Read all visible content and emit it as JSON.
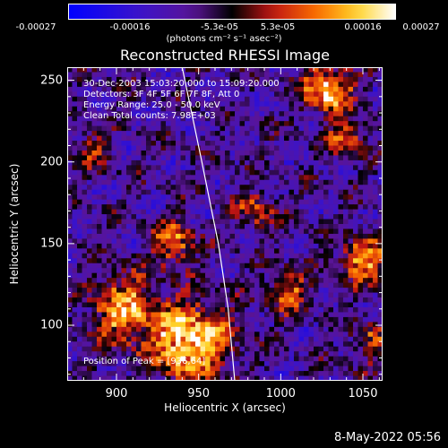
{
  "chart_data": {
    "type": "heatmap",
    "title": "Reconstructed RHESSI Image",
    "xlabel": "Heliocentric X (arcsec)",
    "ylabel": "Heliocentric Y (arcsec)",
    "xlim": [
      870,
      1062
    ],
    "ylim": [
      66,
      258
    ],
    "x_ticks": [
      900,
      950,
      1000,
      1050
    ],
    "y_ticks": [
      100,
      150,
      200,
      250
    ],
    "colorbar": {
      "ticks": [
        "-0.00027",
        "-0.00016",
        "-5.3e-05",
        "5.3e-05",
        "0.00016",
        "0.00027"
      ],
      "label": "(photons cm⁻² s⁻¹ asec⁻²)",
      "range": [
        -0.00027,
        0.00027
      ]
    },
    "annotations": {
      "time_range": "30-Dec-2003 15:03:20.000 to 15:09:20.000",
      "detectors": "Detectors: 3F 4F 5F 6F 7F 8F, Att 0",
      "energy_range": "Energy Range: 25.0 - 50.0 keV",
      "clean_counts": "Clean     Total counts: 7.98E+03",
      "peak_position": "Position of Peak = [936,64]"
    },
    "limb_curve": [
      [
        940,
        258
      ],
      [
        952,
        200
      ],
      [
        962,
        150
      ],
      [
        968,
        110
      ],
      [
        972,
        66
      ]
    ],
    "hotspots": [
      {
        "x": 945,
        "y": 90,
        "value": 1.0,
        "sigma": 16
      },
      {
        "x": 905,
        "y": 110,
        "value": 0.75,
        "sigma": 14
      },
      {
        "x": 935,
        "y": 150,
        "value": 0.6,
        "sigma": 9
      },
      {
        "x": 1028,
        "y": 245,
        "value": 0.9,
        "sigma": 10
      },
      {
        "x": 1050,
        "y": 140,
        "value": 0.8,
        "sigma": 9
      },
      {
        "x": 1040,
        "y": 215,
        "value": 0.55,
        "sigma": 8
      },
      {
        "x": 985,
        "y": 170,
        "value": 0.45,
        "sigma": 8
      },
      {
        "x": 1005,
        "y": 120,
        "value": 0.5,
        "sigma": 9
      },
      {
        "x": 885,
        "y": 205,
        "value": 0.35,
        "sigma": 8
      },
      {
        "x": 1055,
        "y": 90,
        "value": 0.45,
        "sigma": 8
      }
    ]
  },
  "footer": {
    "timestamp": "8-May-2022 05:56"
  }
}
